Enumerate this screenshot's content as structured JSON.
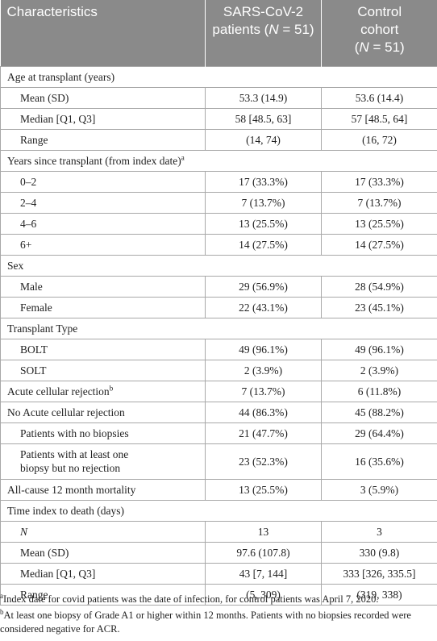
{
  "header": {
    "col1": "Characteristics",
    "col2_line1": "SARS-CoV-2",
    "col2_line2a": "patients (",
    "col2_n": "N",
    "col2_line2b": " = 51)",
    "col3_line1": "Control",
    "col3_line2": "cohort",
    "col3_open": "(",
    "col3_n": "N",
    "col3_line3b": " = 51)"
  },
  "rows": {
    "age": "Age at transplant (years)",
    "age_mean": [
      "Mean (SD)",
      "53.3 (14.9)",
      "53.6 (14.4)"
    ],
    "age_median": [
      "Median [Q1, Q3]",
      "58 [48.5, 63]",
      "57 [48.5, 64]"
    ],
    "age_range": [
      "Range",
      "(14, 74)",
      "(16, 72)"
    ],
    "years": "Years since transplant (from index date)",
    "years_sup": "a",
    "y02": [
      "0–2",
      "17 (33.3%)",
      "17 (33.3%)"
    ],
    "y24": [
      "2–4",
      "7 (13.7%)",
      "7 (13.7%)"
    ],
    "y46": [
      "4–6",
      "13 (25.5%)",
      "13 (25.5%)"
    ],
    "y6p": [
      "6+",
      "14 (27.5%)",
      "14 (27.5%)"
    ],
    "sex": "Sex",
    "male": [
      "Male",
      "29 (56.9%)",
      "28 (54.9%)"
    ],
    "female": [
      "Female",
      "22 (43.1%)",
      "23 (45.1%)"
    ],
    "ttype": "Transplant Type",
    "bolt": [
      "BOLT",
      "49 (96.1%)",
      "49 (96.1%)"
    ],
    "solt": [
      "SOLT",
      "2 (3.9%)",
      "2 (3.9%)"
    ],
    "acr": [
      "Acute cellular rejection",
      "7 (13.7%)",
      "6 (11.8%)"
    ],
    "acr_sup": "b",
    "noacr": [
      "No Acute cellular rejection",
      "44 (86.3%)",
      "45 (88.2%)"
    ],
    "nobiopsy": [
      "Patients with no biopsies",
      "21 (47.7%)",
      "29 (64.4%)"
    ],
    "biopsy_line1": "Patients with at least one",
    "biopsy_line2": "biopsy but no rejection",
    "biopsy_vals": [
      "23 (52.3%)",
      "16 (35.6%)"
    ],
    "mortality": [
      "All-cause 12 month mortality",
      "13 (25.5%)",
      "3 (5.9%)"
    ],
    "tdeath": "Time index to death (days)",
    "td_n": [
      "N",
      "13",
      "3"
    ],
    "td_mean": [
      "Mean (SD)",
      "97.6 (107.8)",
      "330 (9.8)"
    ],
    "td_median": [
      "Median [Q1, Q3]",
      "43 [7, 144]",
      "333 [326, 335.5]"
    ],
    "td_range": [
      "Range",
      "(5, 309)",
      "(319, 338)"
    ]
  },
  "footnotes": {
    "a_mark": "a",
    "a_text": "Index date for covid patients was the date of infection, for control patients was April 7, 2020.",
    "b_mark": "b",
    "b_text": "At least one biopsy of Grade A1 or higher within 12 months. Patients with no biopsies recorded were considered negative for ACR."
  }
}
